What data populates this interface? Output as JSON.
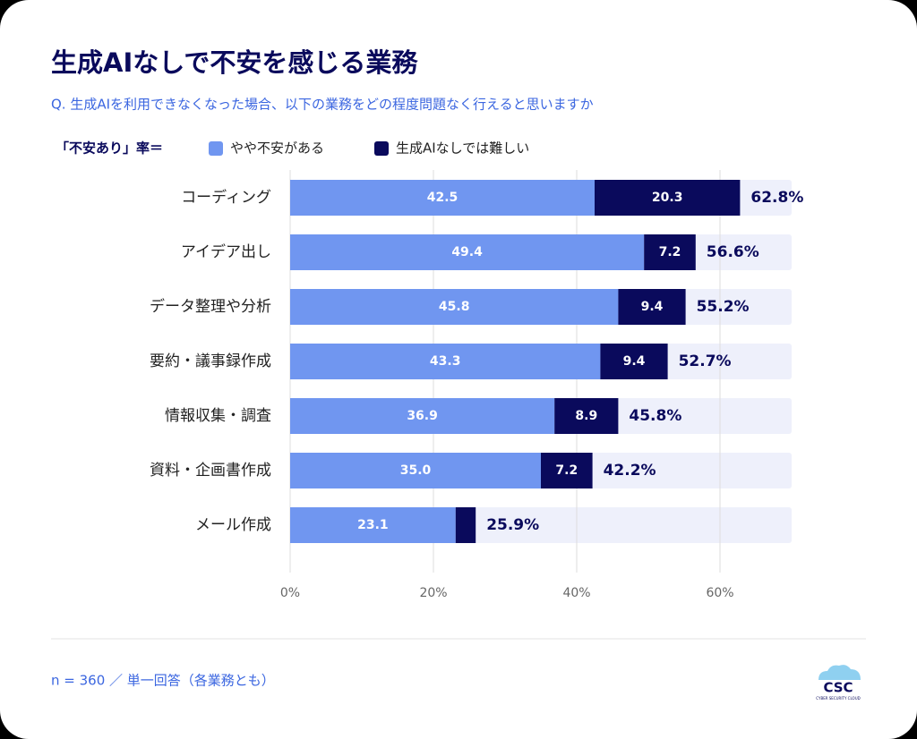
{
  "chart_data": {
    "type": "stacked-bar-horizontal",
    "title": "生成AIなしで不安を感じる業務",
    "subtitle": "Q. 生成AIを利用できなくなった場合、以下の業務をどの程度問題なく行えると思いますか",
    "legend_title": "「不安あり」率＝",
    "categories": [
      "コーディング",
      "アイデア出し",
      "データ整理や分析",
      "要約・議事録作成",
      "情報収集・調査",
      "資料・企画書作成",
      "メール作成"
    ],
    "series": [
      {
        "name": "やや不安がある",
        "color": "#7096f0",
        "values": [
          42.5,
          49.4,
          45.8,
          43.3,
          36.9,
          35.0,
          23.1
        ],
        "value_labels": [
          "42.5",
          "49.4",
          "45.8",
          "43.3",
          "36.9",
          "35.0",
          "23.1"
        ]
      },
      {
        "name": "生成AIなしでは難しい",
        "color": "#0a0a5c",
        "values": [
          20.3,
          7.2,
          9.4,
          9.4,
          8.9,
          7.2,
          2.8
        ],
        "value_labels": [
          "20.3",
          "7.2",
          "9.4",
          "9.4",
          "8.9",
          "7.2",
          null
        ]
      }
    ],
    "totals": [
      62.8,
      56.6,
      55.2,
      52.7,
      45.8,
      42.2,
      25.9
    ],
    "total_labels": [
      "62.8%",
      "56.6%",
      "55.2%",
      "52.7%",
      "45.8%",
      "42.2%",
      "25.9%"
    ],
    "xlim": [
      0,
      70
    ],
    "xticks": [
      {
        "value": 0,
        "label": "0%"
      },
      {
        "value": 20,
        "label": "20%"
      },
      {
        "value": 40,
        "label": "40%"
      },
      {
        "value": 60,
        "label": "60%"
      }
    ],
    "grid": true
  },
  "footer": {
    "note": "n = 360 ／ 単一回答（各業務とも）",
    "logo": "CSC",
    "logo_tagline": "CYBER SECURITY CLOUD"
  }
}
